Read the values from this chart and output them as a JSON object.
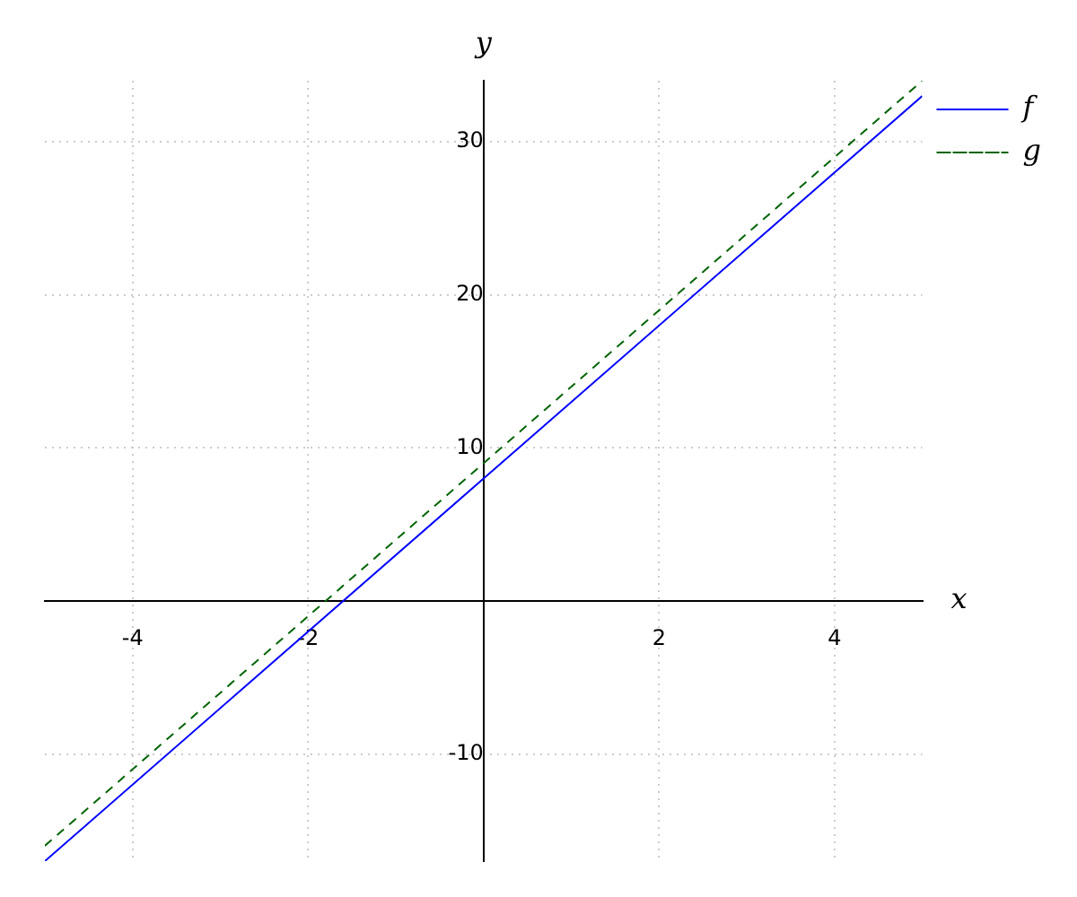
{
  "chart_data": {
    "type": "line",
    "xlabel": "x",
    "ylabel": "y",
    "xlim": [
      -5,
      5
    ],
    "ylim": [
      -17,
      34
    ],
    "xticks": [
      -4,
      -2,
      2,
      4
    ],
    "yticks": [
      -10,
      10,
      20,
      30
    ],
    "grid": true,
    "legend": "top right",
    "marker": "none",
    "series": [
      {
        "name": "f",
        "color": "#0000ff",
        "line_style": "solid",
        "x": [
          -5,
          0,
          5
        ],
        "values": [
          -17,
          8,
          33
        ]
      },
      {
        "name": "g",
        "color": "#006400",
        "line_style": "dashed",
        "x": [
          -5,
          0,
          5
        ],
        "values": [
          -16,
          9,
          34
        ]
      }
    ]
  }
}
